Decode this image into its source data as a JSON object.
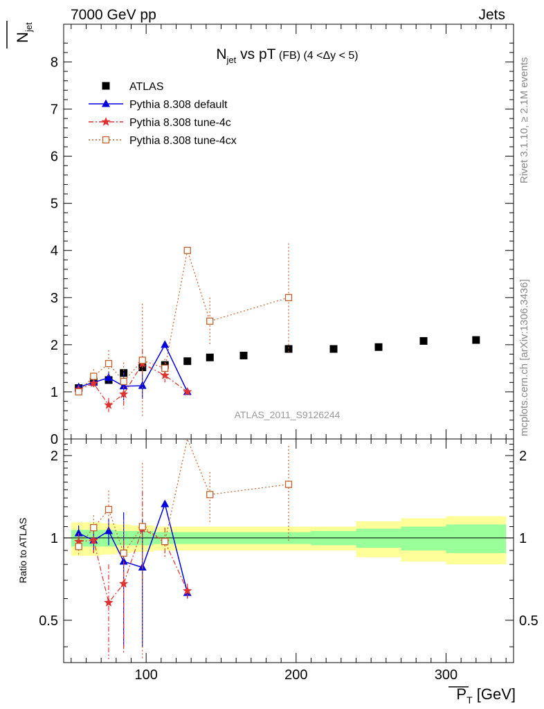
{
  "header": {
    "left": "7000 GeV pp",
    "right": "Jets"
  },
  "side_notes": {
    "rivet": "Rivet 3.1.10, ≥ 2.1M events",
    "mcplots": "mcplots.cern.ch [arXiv:1306.3436]"
  },
  "title": {
    "main": "N",
    "main_sub": "jet",
    "rest": " vs pT",
    "small": " (FB)  (4 <Δy < 5)"
  },
  "ylabel_top": {
    "text": "N",
    "sub": "jet"
  },
  "ylabel_bottom": "Ratio to ATLAS",
  "xlabel": {
    "text": "P",
    "sub": "T",
    "unit": " [GeV]"
  },
  "analysis_tag": "ATLAS_2011_S9126244",
  "legend": [
    {
      "label": "ATLAS"
    },
    {
      "label": "Pythia 8.308 default"
    },
    {
      "label": "Pythia 8.308 tune-4c"
    },
    {
      "label": "Pythia 8.308 tune-4cx"
    }
  ],
  "colors": {
    "atlas": "#000000",
    "default": "#0000dd",
    "tune4c": "#e03030",
    "tune4cx": "#c0602a",
    "band_yellow": "#ffff99",
    "band_green": "#99ff99"
  },
  "chart_data": [
    {
      "type": "scatter",
      "panel": "main",
      "xlim": [
        45,
        345
      ],
      "ylim": [
        0,
        8.8
      ],
      "yticks": [
        0,
        1,
        2,
        3,
        4,
        5,
        6,
        7,
        8
      ],
      "series": [
        {
          "name": "ATLAS",
          "x": [
            55,
            65,
            75,
            85,
            97.5,
            112.5,
            127.5,
            142.5,
            165,
            195,
            225,
            255,
            285,
            320
          ],
          "y": [
            1.08,
            1.22,
            1.25,
            1.4,
            1.52,
            1.57,
            1.65,
            1.73,
            1.77,
            1.91,
            1.91,
            1.95,
            2.08,
            2.1
          ]
        },
        {
          "name": "Pythia 8.308 default",
          "x": [
            55,
            65,
            75,
            85,
            97.5,
            112.5,
            127.5
          ],
          "y": [
            1.1,
            1.2,
            1.3,
            1.12,
            1.13,
            2.0,
            1.0
          ],
          "err": [
            0.07,
            0.1,
            0.12,
            0.3,
            0.28,
            0.0,
            0.0
          ]
        },
        {
          "name": "Pythia 8.308 tune-4c",
          "x": [
            55,
            65,
            75,
            85,
            97.5,
            112.5,
            127.5
          ],
          "y": [
            1.05,
            1.18,
            0.72,
            0.95,
            1.6,
            1.35,
            1.0
          ],
          "err": [
            0.07,
            0.1,
            0.15,
            0.3,
            0.3,
            0.15,
            0.0
          ]
        },
        {
          "name": "Pythia 8.308 tune-4cx",
          "x": [
            55,
            65,
            75,
            85,
            97.5,
            112.5,
            127.5,
            142.5,
            195
          ],
          "y": [
            1.0,
            1.33,
            1.6,
            1.22,
            1.67,
            1.5,
            4.0,
            2.5,
            3.0
          ],
          "err": [
            0.07,
            0.15,
            0.28,
            0.4,
            1.2,
            0.2,
            0.0,
            0.5,
            1.15
          ]
        }
      ]
    },
    {
      "type": "scatter",
      "panel": "ratio",
      "ylabel": "Ratio to ATLAS",
      "xlim": [
        45,
        345
      ],
      "ylim": [
        0.35,
        2.3
      ],
      "yticks": [
        0.5,
        1,
        2
      ],
      "xticks": [
        100,
        200,
        300
      ],
      "bands": {
        "edges": [
          50,
          60,
          70,
          80,
          90,
          105,
          120,
          135,
          150,
          180,
          210,
          240,
          270,
          300,
          340
        ],
        "yellow": [
          0.14,
          0.14,
          0.13,
          0.12,
          0.11,
          0.1,
          0.1,
          0.1,
          0.1,
          0.1,
          0.1,
          0.15,
          0.18,
          0.2,
          0.48
        ],
        "green": [
          0.07,
          0.07,
          0.07,
          0.06,
          0.06,
          0.05,
          0.05,
          0.05,
          0.05,
          0.05,
          0.06,
          0.08,
          0.1,
          0.12,
          0.2
        ]
      },
      "series": [
        {
          "name": "Pythia 8.308 default",
          "x": [
            55,
            65,
            75,
            85,
            97.5,
            112.5,
            127.5
          ],
          "y": [
            1.04,
            0.98,
            1.06,
            0.82,
            0.78,
            1.33,
            0.63
          ],
          "err": [
            0.07,
            0.1,
            0.12,
            0.42,
            0.38,
            0.0,
            0.03
          ]
        },
        {
          "name": "Pythia 8.308 tune-4c",
          "x": [
            55,
            65,
            75,
            85,
            97.5,
            112.5,
            127.5
          ],
          "y": [
            0.97,
            0.98,
            0.58,
            0.68,
            1.08,
            0.97,
            0.64
          ],
          "err": [
            0.07,
            0.1,
            0.22,
            0.3,
            0.4,
            0.12,
            0.04
          ]
        },
        {
          "name": "Pythia 8.308 tune-4cx",
          "x": [
            55,
            65,
            75,
            85,
            97.5,
            112.5,
            127.5,
            142.5,
            195
          ],
          "y": [
            0.93,
            1.09,
            1.27,
            0.88,
            1.1,
            0.97,
            2.32,
            1.44,
            1.57
          ],
          "err": [
            0.06,
            0.12,
            0.22,
            0.28,
            0.78,
            0.12,
            0.0,
            0.3,
            0.6
          ]
        }
      ]
    }
  ]
}
